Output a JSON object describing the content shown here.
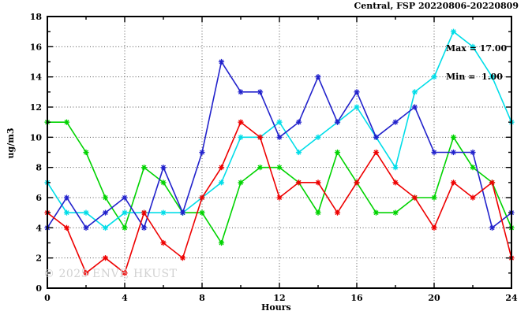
{
  "header": {
    "title": "Central, FSP 20220806-20220809"
  },
  "annotation": {
    "max_line": "Max = 17.00",
    "min_line": "Min =  1.00"
  },
  "watermark": "© 2025 ENVF, HKUST",
  "chart_data": {
    "type": "line",
    "title": "Central, FSP 20220806-20220809",
    "xlabel": "Hours",
    "ylabel": "ug/m3",
    "xlim": [
      0,
      24
    ],
    "ylim": [
      0,
      18
    ],
    "xticks_major": [
      0,
      4,
      8,
      12,
      16,
      20,
      24
    ],
    "xticks_minor": [
      2,
      6,
      10,
      14,
      18,
      22
    ],
    "yticks_major": [
      0,
      2,
      4,
      6,
      8,
      10,
      12,
      14,
      16,
      18
    ],
    "yticks_minor": [
      1,
      3,
      5,
      7,
      9,
      11,
      13,
      15,
      17
    ],
    "grid_x": [
      4,
      8,
      12,
      16,
      20
    ],
    "grid_y": [
      2,
      4,
      6,
      8,
      10,
      12,
      14,
      16
    ],
    "grid": true,
    "legend_position": "none",
    "stats": {
      "max": 17.0,
      "min": 1.0
    },
    "x": [
      0,
      1,
      2,
      3,
      4,
      5,
      6,
      7,
      8,
      9,
      10,
      11,
      12,
      13,
      14,
      15,
      16,
      17,
      18,
      19,
      20,
      21,
      22,
      23,
      24
    ],
    "series": [
      {
        "name": "series-green",
        "color": "#00d300",
        "values": [
          11,
          11,
          9,
          6,
          4,
          8,
          7,
          5,
          5,
          3,
          7,
          8,
          8,
          7,
          5,
          9,
          7,
          5,
          5,
          6,
          6,
          10,
          8,
          7,
          4
        ]
      },
      {
        "name": "series-cyan",
        "color": "#00dde8",
        "values": [
          7,
          5,
          5,
          4,
          5,
          5,
          5,
          5,
          6,
          7,
          10,
          10,
          11,
          9,
          10,
          11,
          12,
          10,
          8,
          13,
          14,
          17,
          16,
          14,
          11
        ]
      },
      {
        "name": "series-blue",
        "color": "#2222cc",
        "values": [
          4,
          6,
          4,
          5,
          6,
          4,
          8,
          5,
          9,
          15,
          13,
          13,
          10,
          11,
          14,
          11,
          13,
          10,
          11,
          12,
          9,
          9,
          9,
          4,
          5
        ]
      },
      {
        "name": "series-red",
        "color": "#ee0000",
        "values": [
          5,
          4,
          1,
          2,
          1,
          5,
          3,
          2,
          6,
          8,
          11,
          10,
          6,
          7,
          7,
          5,
          7,
          9,
          7,
          6,
          4,
          7,
          6,
          7,
          2
        ]
      }
    ]
  },
  "layout_colors": {
    "axis": "#000000",
    "grid": "#555555",
    "background": "#ffffff"
  }
}
